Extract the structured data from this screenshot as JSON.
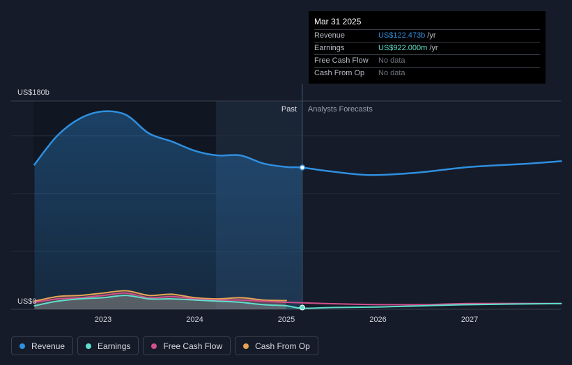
{
  "chart_data": {
    "type": "line",
    "y_top_label": "US$180b",
    "y_bottom_label": "US$0",
    "ylim": [
      0,
      180
    ],
    "x_ticks": [
      "2023",
      "2024",
      "2025",
      "2026",
      "2027"
    ],
    "past_label": "Past",
    "forecast_label": "Analysts Forecasts",
    "divider_date": "Mar 31 2025",
    "series": [
      {
        "name": "Revenue",
        "color": "#2f8fe0",
        "points": [
          [
            "2022-04",
            125
          ],
          [
            "2022-07",
            150
          ],
          [
            "2022-10",
            165
          ],
          [
            "2023-01",
            171
          ],
          [
            "2023-04",
            168
          ],
          [
            "2023-07",
            152
          ],
          [
            "2023-10",
            145
          ],
          [
            "2024-01",
            137
          ],
          [
            "2024-04",
            133
          ],
          [
            "2024-07",
            133
          ],
          [
            "2024-10",
            126
          ],
          [
            "2025-01",
            123
          ],
          [
            "2025-03",
            122.5
          ],
          [
            "2025-07",
            119
          ],
          [
            "2025-12",
            116
          ],
          [
            "2026-06",
            118
          ],
          [
            "2027-01",
            123
          ],
          [
            "2027-09",
            126
          ],
          [
            "2028-01",
            128
          ]
        ]
      },
      {
        "name": "Earnings",
        "color": "#5fe0cc",
        "points": [
          [
            "2022-04",
            3
          ],
          [
            "2022-07",
            7
          ],
          [
            "2022-10",
            9
          ],
          [
            "2023-01",
            10
          ],
          [
            "2023-04",
            12
          ],
          [
            "2023-07",
            9
          ],
          [
            "2023-10",
            9
          ],
          [
            "2024-01",
            8
          ],
          [
            "2024-04",
            7
          ],
          [
            "2024-07",
            6
          ],
          [
            "2024-10",
            4
          ],
          [
            "2025-01",
            3
          ],
          [
            "2025-03",
            0.9
          ],
          [
            "2025-07",
            1.5
          ],
          [
            "2026-01",
            2
          ],
          [
            "2026-07",
            3
          ],
          [
            "2027-01",
            4
          ],
          [
            "2028-01",
            5
          ]
        ]
      },
      {
        "name": "Free Cash Flow",
        "color": "#d0508c",
        "points": [
          [
            "2022-04",
            6
          ],
          [
            "2022-07",
            9
          ],
          [
            "2022-10",
            10
          ],
          [
            "2023-01",
            12
          ],
          [
            "2023-04",
            14
          ],
          [
            "2023-07",
            10
          ],
          [
            "2023-10",
            11
          ],
          [
            "2024-01",
            9
          ],
          [
            "2024-04",
            8
          ],
          [
            "2024-07",
            8
          ],
          [
            "2024-10",
            7
          ],
          [
            "2025-01",
            6
          ],
          [
            "2025-06",
            5
          ],
          [
            "2026-01",
            4
          ],
          [
            "2026-07",
            4
          ],
          [
            "2027-01",
            5
          ],
          [
            "2028-01",
            5
          ]
        ]
      },
      {
        "name": "Cash From Op",
        "color": "#e5a455",
        "points": [
          [
            "2022-04",
            7
          ],
          [
            "2022-07",
            11
          ],
          [
            "2022-10",
            12
          ],
          [
            "2023-01",
            14
          ],
          [
            "2023-04",
            16
          ],
          [
            "2023-07",
            12
          ],
          [
            "2023-10",
            13
          ],
          [
            "2024-01",
            10
          ],
          [
            "2024-04",
            9
          ],
          [
            "2024-07",
            10
          ],
          [
            "2024-10",
            8
          ],
          [
            "2025-01",
            7.5
          ]
        ]
      }
    ]
  },
  "tooltip": {
    "date": "Mar 31 2025",
    "rows": [
      {
        "label": "Revenue",
        "value": "US$122.473b",
        "unit": "/yr",
        "color": "#2f8fe0"
      },
      {
        "label": "Earnings",
        "value": "US$922.000m",
        "unit": "/yr",
        "color": "#5fe0cc"
      },
      {
        "label": "Free Cash Flow",
        "value": "No data",
        "unit": "",
        "color": ""
      },
      {
        "label": "Cash From Op",
        "value": "No data",
        "unit": "",
        "color": ""
      }
    ]
  },
  "legend": [
    {
      "label": "Revenue",
      "color": "#2f8fe0"
    },
    {
      "label": "Earnings",
      "color": "#5fe0cc"
    },
    {
      "label": "Free Cash Flow",
      "color": "#d0508c"
    },
    {
      "label": "Cash From Op",
      "color": "#e5a455"
    }
  ]
}
